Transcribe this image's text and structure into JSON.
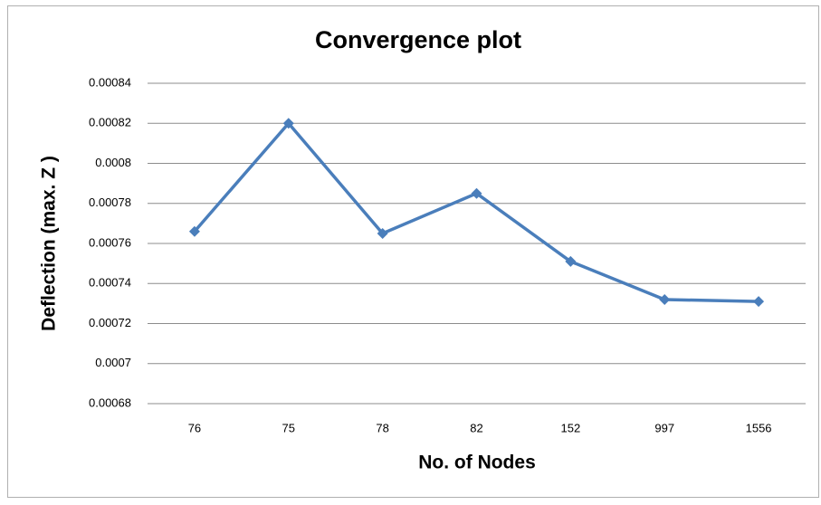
{
  "chart_data": {
    "type": "line",
    "title": "Convergence plot",
    "x_label": "No. of Nodes",
    "y_label": "Deflection (max. Z )",
    "categories": [
      "76",
      "75",
      "78",
      "82",
      "152",
      "997",
      "1556"
    ],
    "series": [
      {
        "name": "Deflection",
        "color": "#4a7ebb",
        "values": [
          0.000766,
          0.00082,
          0.000765,
          0.000785,
          0.000751,
          0.000732,
          0.000731
        ]
      }
    ],
    "ylim": [
      0.00068,
      0.00084
    ],
    "yticks": [
      0.00068,
      0.0007,
      0.00072,
      0.00074,
      0.00076,
      0.00078,
      0.0008,
      0.00082,
      0.00084
    ],
    "grid": true
  }
}
